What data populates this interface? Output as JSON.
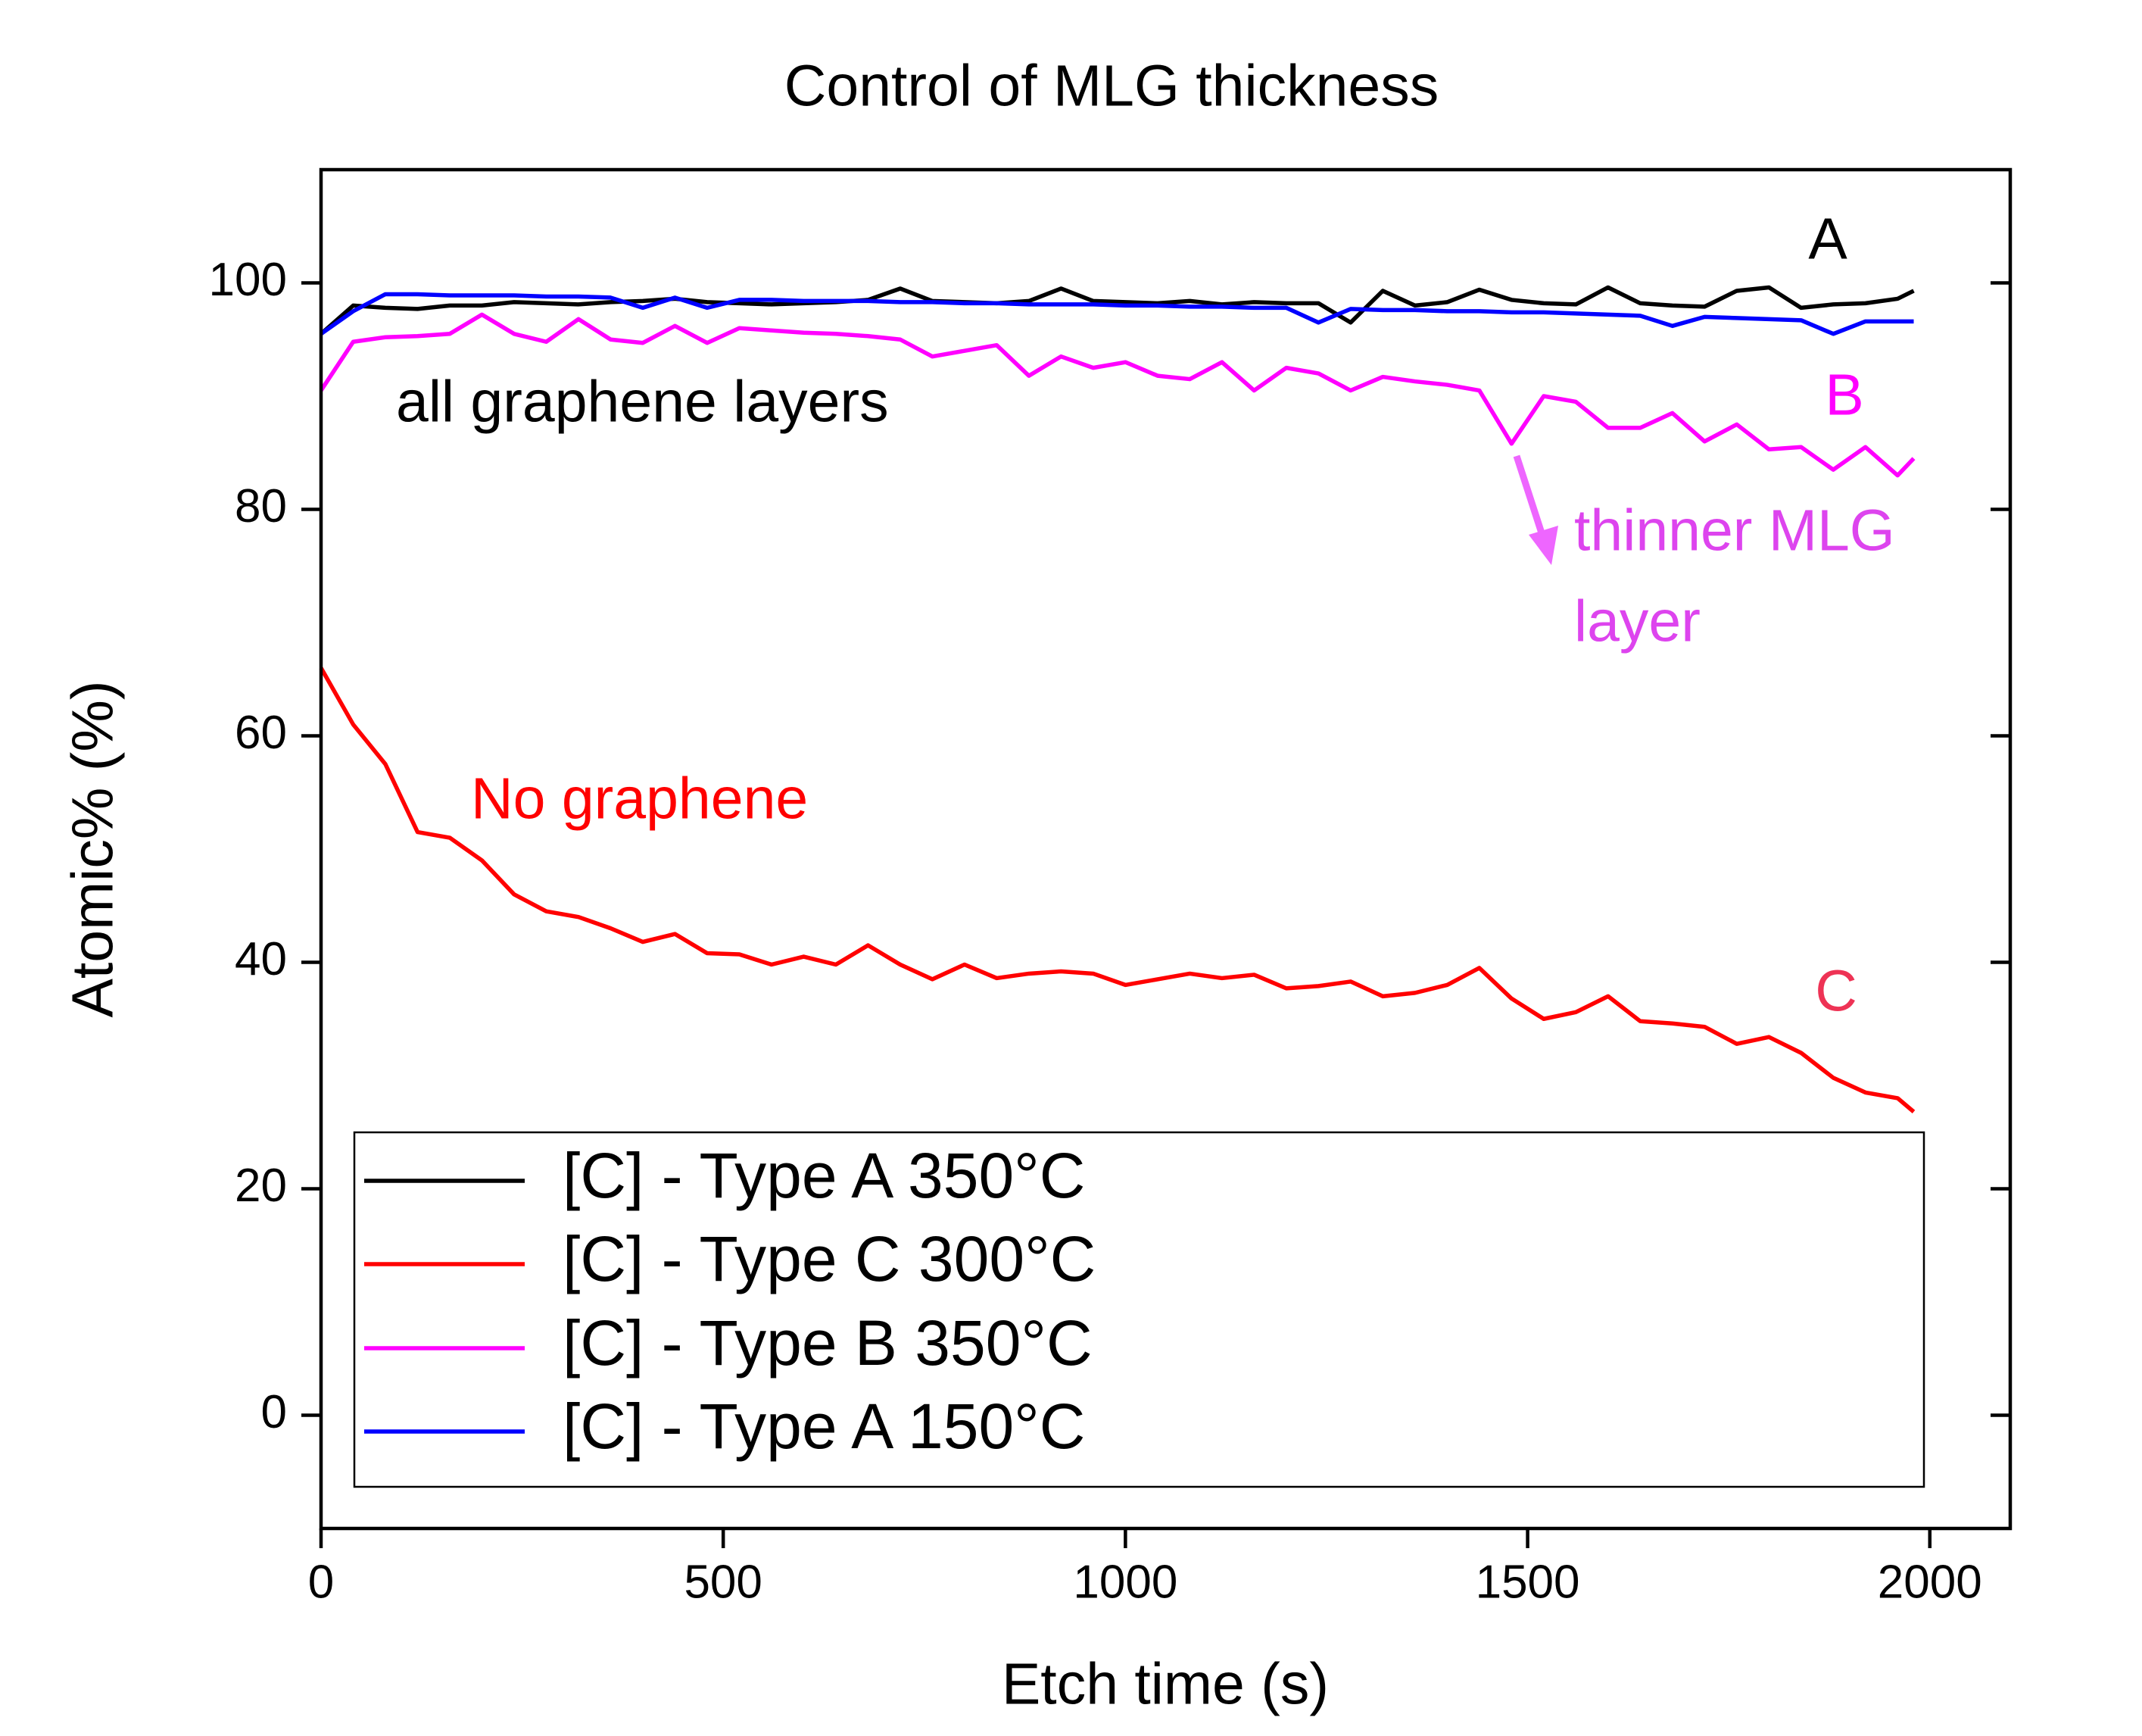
{
  "chart_data": {
    "type": "line",
    "title": "Control of MLG thickness",
    "x_label": "Etch time (s)",
    "y_label": "Atomic% (%)",
    "xlim": [
      0,
      2100
    ],
    "ylim": [
      -10,
      110
    ],
    "xticks": [
      0,
      500,
      1000,
      1500,
      2000
    ],
    "yticks": [
      0,
      20,
      40,
      60,
      80,
      100
    ],
    "legend": "lower",
    "x": [
      0,
      40,
      80,
      120,
      160,
      200,
      240,
      280,
      320,
      360,
      400,
      440,
      480,
      520,
      560,
      600,
      640,
      680,
      720,
      760,
      800,
      840,
      880,
      920,
      960,
      1000,
      1040,
      1080,
      1120,
      1160,
      1200,
      1240,
      1280,
      1320,
      1360,
      1400,
      1440,
      1480,
      1520,
      1560,
      1600,
      1640,
      1680,
      1720,
      1760,
      1800,
      1840,
      1880,
      1920,
      1960,
      1980
    ],
    "series": [
      {
        "name": "[C] - Type A 350°C",
        "color": "#000000",
        "values": [
          95.5,
          98,
          97.8,
          97.7,
          98,
          98,
          98.3,
          98.2,
          98.1,
          98.3,
          98.4,
          98.6,
          98.3,
          98.2,
          98.1,
          98.2,
          98.3,
          98.5,
          99.5,
          98.4,
          98.3,
          98.2,
          98.4,
          99.5,
          98.4,
          98.3,
          98.2,
          98.4,
          98.1,
          98.3,
          98.2,
          98.2,
          96.5,
          99.3,
          98,
          98.3,
          99.4,
          98.5,
          98.2,
          98.1,
          99.6,
          98.2,
          98,
          97.9,
          99.3,
          99.6,
          97.8,
          98.1,
          98.2,
          98.6,
          99.3
        ]
      },
      {
        "name": "[C] - Type C 300°C",
        "color": "#ff0000",
        "values": [
          66,
          61,
          57.5,
          51.5,
          51,
          49,
          46,
          44.5,
          44,
          43,
          41.8,
          42.5,
          40.8,
          40.7,
          39.8,
          40.5,
          39.8,
          41.5,
          39.8,
          38.5,
          39.8,
          38.6,
          39,
          39.2,
          39,
          38,
          38.5,
          39,
          38.6,
          38.9,
          37.7,
          37.9,
          38.3,
          37,
          37.3,
          38,
          39.5,
          36.8,
          35,
          35.6,
          37,
          34.8,
          34.6,
          34.3,
          32.8,
          33.4,
          32,
          29.8,
          28.5,
          28,
          26.8
        ]
      },
      {
        "name": "[C] - Type B 350°C",
        "color": "#ff00ff",
        "values": [
          90.5,
          94.8,
          95.2,
          95.3,
          95.5,
          97.2,
          95.5,
          94.8,
          96.8,
          95,
          94.7,
          96.2,
          94.7,
          96,
          95.8,
          95.6,
          95.5,
          95.3,
          95,
          93.5,
          94,
          94.5,
          91.8,
          93.5,
          92.5,
          93,
          91.8,
          91.5,
          93,
          90.5,
          92.5,
          92,
          90.5,
          91.7,
          91.3,
          91,
          90.5,
          85.8,
          90,
          89.5,
          87.2,
          87.2,
          88.5,
          86,
          87.5,
          85.3,
          85.5,
          83.5,
          85.5,
          83,
          84.5
        ]
      },
      {
        "name": "[C] - Type A 150°C",
        "color": "#0000ff",
        "values": [
          95.5,
          97.5,
          99,
          99,
          98.9,
          98.9,
          98.9,
          98.8,
          98.8,
          98.7,
          97.8,
          98.7,
          97.8,
          98.5,
          98.5,
          98.4,
          98.4,
          98.4,
          98.3,
          98.3,
          98.2,
          98.2,
          98.1,
          98.1,
          98.1,
          98,
          98,
          97.9,
          97.9,
          97.8,
          97.8,
          96.5,
          97.7,
          97.6,
          97.6,
          97.5,
          97.5,
          97.4,
          97.4,
          97.3,
          97.2,
          97.1,
          96.2,
          97,
          96.9,
          96.8,
          96.7,
          95.5,
          96.6,
          96.6,
          96.6
        ]
      }
    ],
    "annotations": [
      {
        "text": "A",
        "color": "#000000"
      },
      {
        "text": "B",
        "color": "#ff00ff"
      },
      {
        "text": "C",
        "color": "#ee3355"
      },
      {
        "text": "all graphene layers",
        "color": "#000000"
      },
      {
        "text": "No graphene",
        "color": "#ff0000"
      },
      {
        "text": "thinner MLG",
        "color": "#dd44ee"
      },
      {
        "text": "layer",
        "color": "#dd44ee"
      }
    ]
  }
}
